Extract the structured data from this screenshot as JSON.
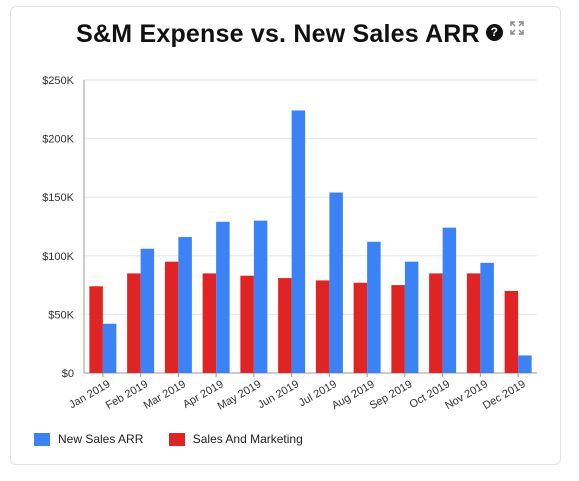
{
  "title": "S&M Expense vs. New Sales ARR",
  "icons": {
    "help": "help-circle-icon",
    "expand": "expand-icon"
  },
  "chart_data": {
    "type": "bar",
    "title": "S&M Expense vs. New Sales ARR",
    "categories": [
      "Jan 2019",
      "Feb 2019",
      "Mar 2019",
      "Apr 2019",
      "May 2019",
      "Jun 2019",
      "Jul 2019",
      "Aug 2019",
      "Sep 2019",
      "Oct 2019",
      "Nov 2019",
      "Dec 2019"
    ],
    "series": [
      {
        "name": "Sales And Marketing",
        "color": "#e02424",
        "values": [
          74000,
          85000,
          95000,
          85000,
          83000,
          81000,
          79000,
          77000,
          75000,
          85000,
          85000,
          70000
        ]
      },
      {
        "name": "New Sales ARR",
        "color": "#3b82f6",
        "values": [
          42000,
          106000,
          116000,
          129000,
          130000,
          224000,
          154000,
          112000,
          95000,
          124000,
          94000,
          15000
        ]
      }
    ],
    "yticks": [
      "$0",
      "$50K",
      "$100K",
      "$150K",
      "$200K",
      "$250K"
    ],
    "ylim": [
      0,
      250000
    ],
    "grid": true,
    "legend_position": "bottom-left",
    "legend": [
      "New Sales ARR",
      "Sales And Marketing"
    ]
  }
}
